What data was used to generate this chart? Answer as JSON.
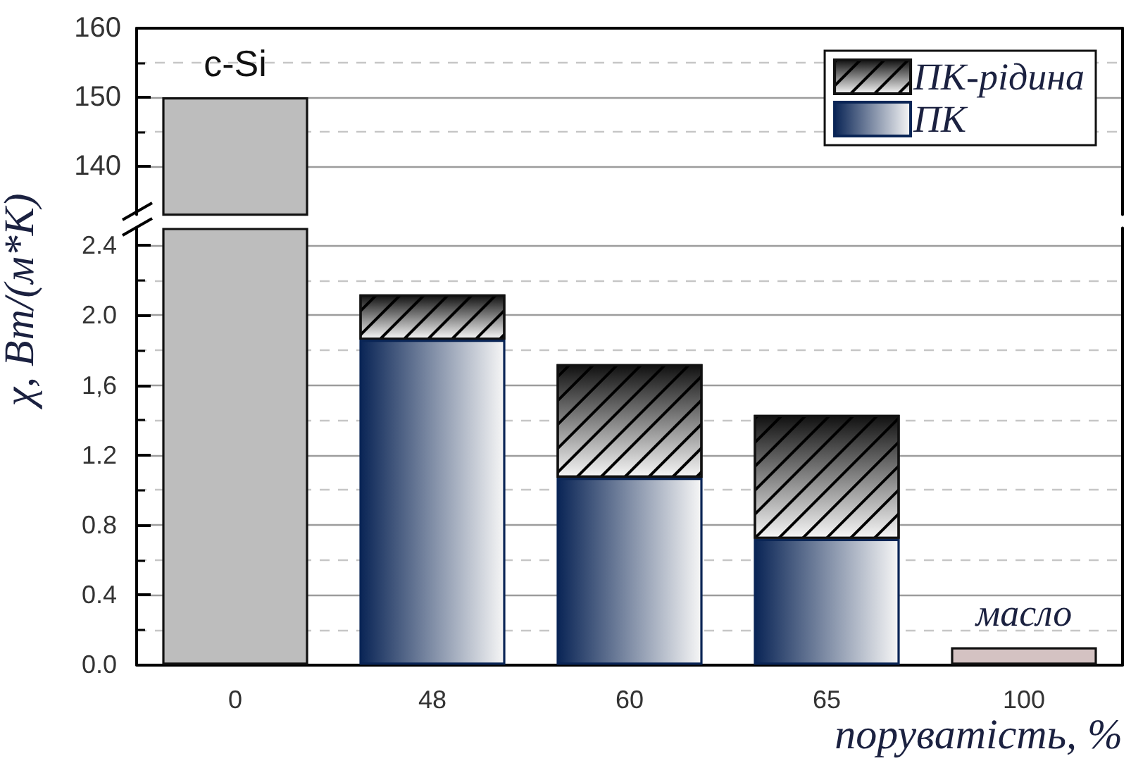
{
  "chart_data": [
    {
      "type": "bar",
      "categories": [
        "0",
        "48",
        "60",
        "65",
        "100"
      ],
      "series": [
        {
          "color": "#bdbdbd",
          "values": [
            150,
            null,
            null,
            null,
            null
          ]
        }
      ],
      "stacked": true,
      "ylim": [
        133,
        160
      ],
      "yticks": [
        140,
        {
          "value": 145,
          "label": null
        },
        150,
        {
          "value": 155,
          "label": null
        },
        160
      ],
      "grid": true,
      "tick_labels": "y",
      "annotations": [
        {
          "text": "c-Si",
          "x": "0",
          "y": 150
        }
      ]
    },
    {
      "type": "bar",
      "categories": [
        "0",
        "48",
        "60",
        "65",
        "100"
      ],
      "xlabel": "поруватість, %",
      "ylabel": "χ, Вт/(м*К)",
      "stacked": true,
      "series": [
        {
          "color": "#bdbdbd",
          "values": [
            2.5,
            null,
            null,
            null,
            null
          ]
        },
        {
          "name": "ПК",
          "color": "#0a2556",
          "values": [
            null,
            1.86,
            1.07,
            0.72,
            null
          ]
        },
        {
          "name": "ПК-рідина",
          "color": "#111111",
          "values": [
            null,
            0.26,
            0.65,
            0.71,
            null
          ]
        },
        {
          "color": "#d4c2c2",
          "values": [
            null,
            null,
            null,
            null,
            0.1
          ]
        }
      ],
      "ylim": [
        0,
        2.5
      ],
      "yticks": [
        {
          "value": 0,
          "label": "0.0"
        },
        {
          "value": 0.2,
          "label": null
        },
        0.4,
        {
          "value": 0.6,
          "label": null
        },
        0.8,
        {
          "value": 1,
          "label": null
        },
        1.2,
        {
          "value": 1.4,
          "label": null
        },
        {
          "value": 1.6,
          "label": "1,6"
        },
        {
          "value": 1.8,
          "label": null
        },
        {
          "value": 2,
          "label": "2.0"
        },
        {
          "value": 2.2,
          "label": null
        },
        2.4
      ],
      "grid": true,
      "legend": "top right",
      "annotations": [
        {
          "text": "масло",
          "x": "100",
          "y": 0.1
        }
      ]
    }
  ]
}
